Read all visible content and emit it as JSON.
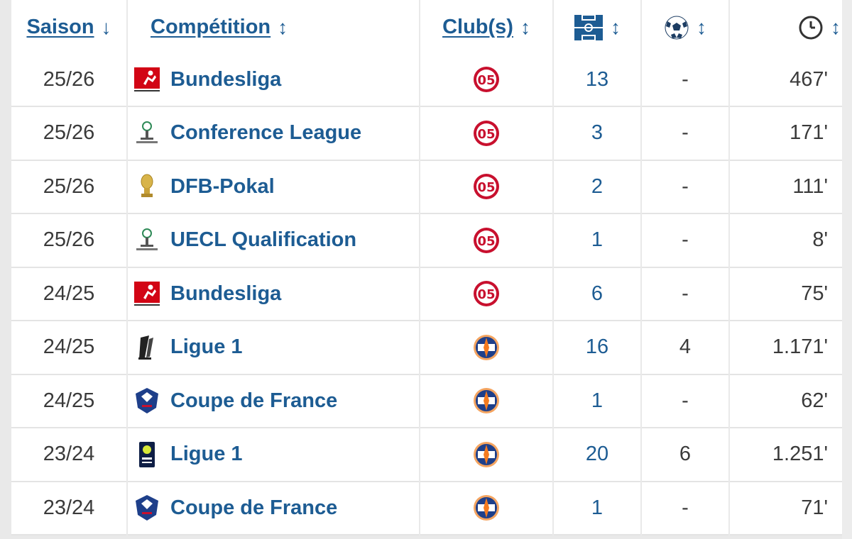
{
  "header": {
    "season": "Saison",
    "season_sort": "↓",
    "competition": "Compétition",
    "sort_icon": "↕",
    "clubs": "Club(s)"
  },
  "icons": {
    "appearances": "pitch-icon",
    "goals": "football-icon",
    "minutes": "clock-icon"
  },
  "colors": {
    "link": "#1d5c93",
    "mainz": "#c8102e",
    "montpellier": "#f47b20"
  },
  "rows": [
    {
      "season": "25/26",
      "competition": "Bundesliga",
      "comp_logo": "bundesliga",
      "club": "mainz",
      "apps": "13",
      "goals": "-",
      "minutes": "467'"
    },
    {
      "season": "25/26",
      "competition": "Conference League",
      "comp_logo": "uecl",
      "club": "mainz",
      "apps": "3",
      "goals": "-",
      "minutes": "171'"
    },
    {
      "season": "25/26",
      "competition": "DFB-Pokal",
      "comp_logo": "dfb",
      "club": "mainz",
      "apps": "2",
      "goals": "-",
      "minutes": "111'"
    },
    {
      "season": "25/26",
      "competition": "UECL Qualification",
      "comp_logo": "uecl",
      "club": "mainz",
      "apps": "1",
      "goals": "-",
      "minutes": "8'"
    },
    {
      "season": "24/25",
      "competition": "Bundesliga",
      "comp_logo": "bundesliga",
      "club": "mainz",
      "apps": "6",
      "goals": "-",
      "minutes": "75'"
    },
    {
      "season": "24/25",
      "competition": "Ligue 1",
      "comp_logo": "ligue1-new",
      "club": "montpellier",
      "apps": "16",
      "goals": "4",
      "minutes": "1.171'"
    },
    {
      "season": "24/25",
      "competition": "Coupe de France",
      "comp_logo": "cdf",
      "club": "montpellier",
      "apps": "1",
      "goals": "-",
      "minutes": "62'"
    },
    {
      "season": "23/24",
      "competition": "Ligue 1",
      "comp_logo": "ligue1-old",
      "club": "montpellier",
      "apps": "20",
      "goals": "6",
      "minutes": "1.251'"
    },
    {
      "season": "23/24",
      "competition": "Coupe de France",
      "comp_logo": "cdf",
      "club": "montpellier",
      "apps": "1",
      "goals": "-",
      "minutes": "71'"
    }
  ]
}
